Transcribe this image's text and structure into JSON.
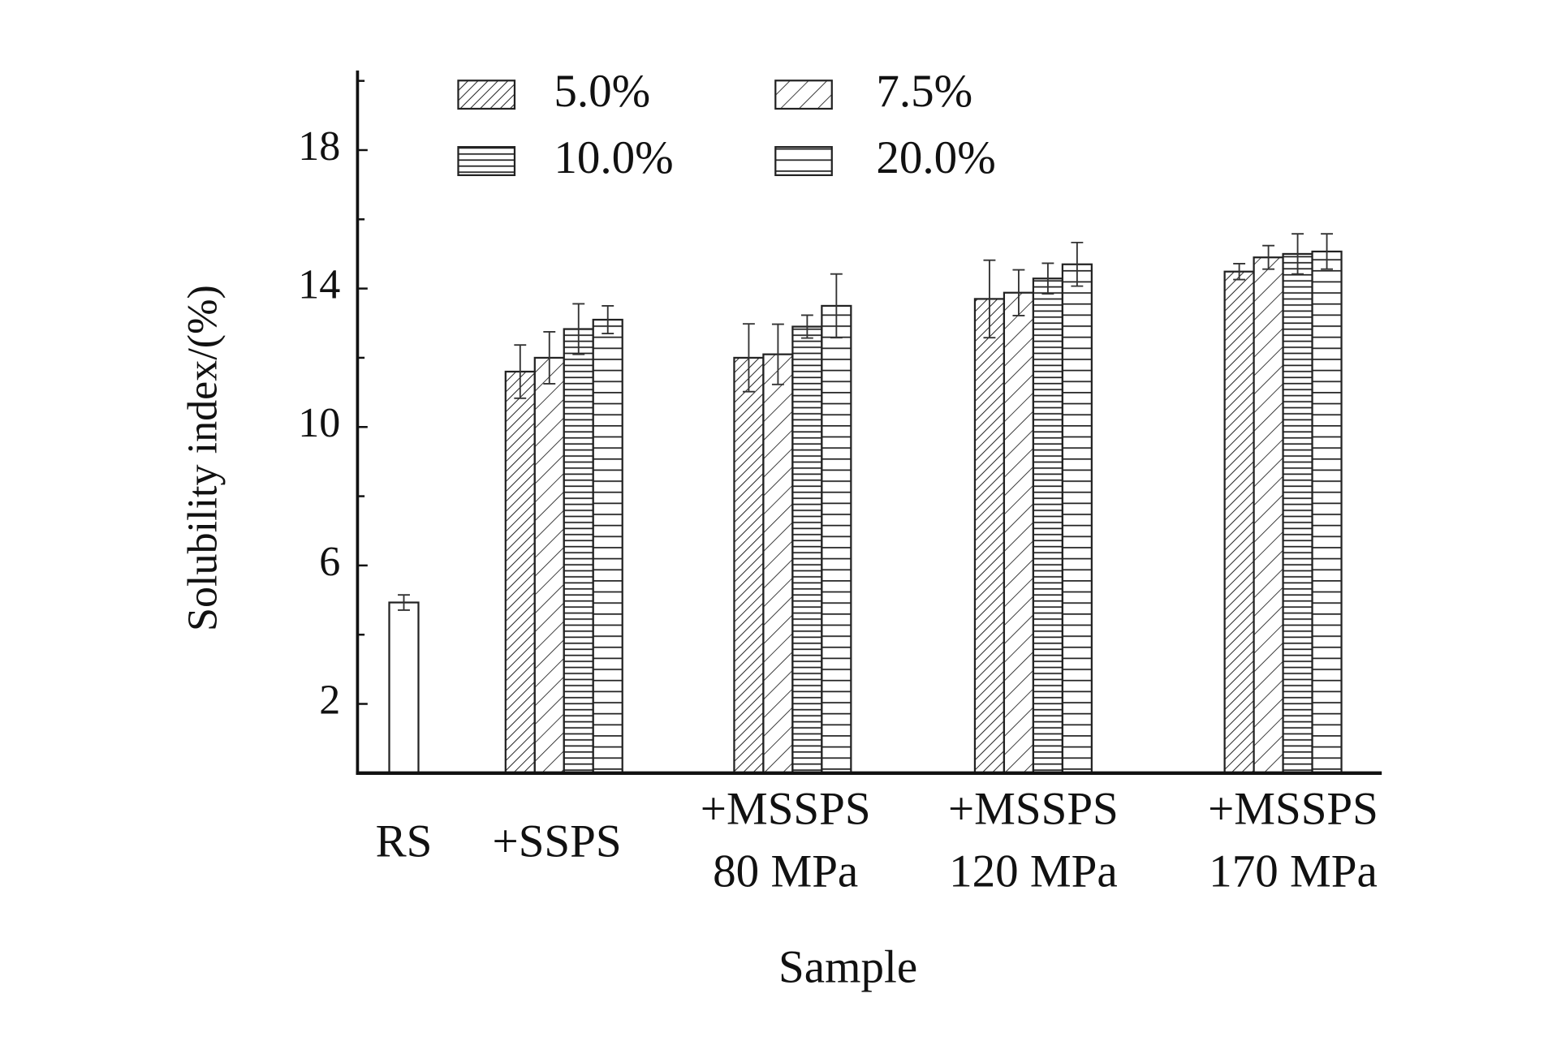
{
  "chart_data": {
    "type": "bar",
    "xlabel": "Sample",
    "ylabel": "Solubility index/(%)",
    "categories": [
      [
        "RS"
      ],
      [
        "+SSPS"
      ],
      [
        "+MSSPS",
        "80 MPa"
      ],
      [
        "+MSSPS",
        "120 MPa"
      ],
      [
        "+MSSPS",
        "170 MPa"
      ]
    ],
    "series": [
      {
        "name": "5.0%",
        "color": "#222222",
        "pattern": "diagonal-dense",
        "values": [
          null,
          11.6,
          12.0,
          13.7,
          14.49
        ],
        "errors": [
          null,
          0.77,
          0.98,
          1.12,
          0.23
        ]
      },
      {
        "name": "7.5%",
        "color": "#222222",
        "pattern": "diagonal-sparse",
        "values": [
          null,
          12.0,
          12.1,
          13.88,
          14.9
        ],
        "errors": [
          null,
          0.75,
          0.87,
          0.66,
          0.34
        ]
      },
      {
        "name": "10.0%",
        "color": "#222222",
        "pattern": "horizontal-dense",
        "values": [
          null,
          12.83,
          12.9,
          14.29,
          15.0
        ],
        "errors": [
          null,
          0.73,
          0.33,
          0.44,
          0.58
        ]
      },
      {
        "name": "20.0%",
        "color": "#222222",
        "pattern": "horizontal-sparse",
        "values": [
          null,
          13.1,
          13.5,
          14.7,
          15.07
        ],
        "errors": [
          null,
          0.4,
          0.92,
          0.63,
          0.51
        ]
      },
      {
        "color": "#222222",
        "pattern": "none",
        "values": [
          4.93,
          null,
          null,
          null,
          null
        ],
        "errors": [
          0.22,
          null,
          null,
          null,
          null
        ]
      }
    ],
    "ylim": [
      0,
      20.3
    ],
    "yticks": [
      2,
      6,
      10,
      14,
      18
    ],
    "yminor_ticks": [
      4,
      8,
      12,
      16,
      20
    ],
    "legend": "top"
  }
}
